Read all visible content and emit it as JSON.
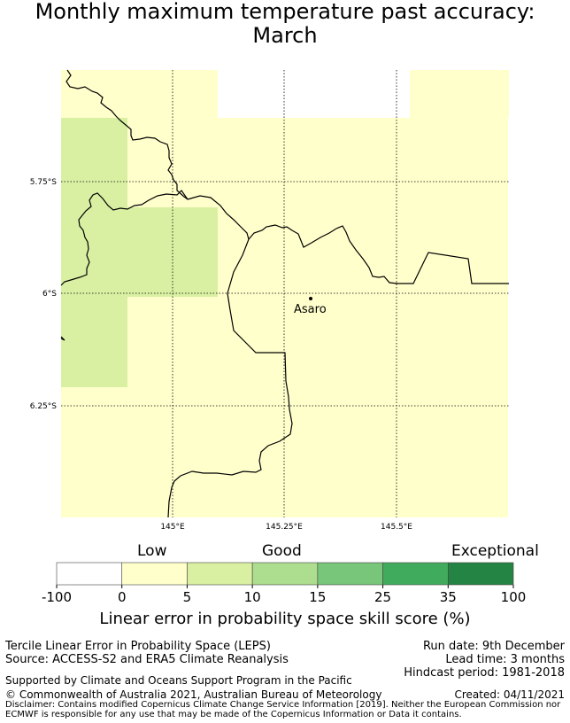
{
  "title": {
    "line1": "Monthly maximum temperature past accuracy:",
    "line2": "March"
  },
  "map": {
    "lat_ticks": [
      "5.75°S",
      "6°S",
      "6.25°S"
    ],
    "lon_ticks": [
      "145°E",
      "145.25°E",
      "145.5°E"
    ],
    "place": "Asaro"
  },
  "colorbar": {
    "categories": [
      "Low",
      "Good",
      "Exceptional"
    ],
    "ticks": [
      "-100",
      "0",
      "5",
      "10",
      "15",
      "25",
      "35",
      "100"
    ],
    "colors": [
      "#ffffff",
      "#ffffcc",
      "#d9f0a3",
      "#addd8e",
      "#78c679",
      "#41ab5d",
      "#238443"
    ],
    "label": "Linear error in probability space skill score (%)"
  },
  "footer": {
    "method": "Tercile Linear Error in Probability Space (LEPS)",
    "source": "Source: ACCESS-S2 and ERA5 Climate Reanalysis",
    "run_date": "Run date: 9th December",
    "lead_time": "Lead time: 3 months",
    "hindcast": "Hindcast period: 1981-2018",
    "support": "Supported by Climate and Oceans Support Program in the Pacific",
    "copyright": "© Commonwealth of Australia 2021, Australian Bureau of Meteorology",
    "created": "Created: 04/11/2021",
    "disclaimer": "Disclaimer: Contains modified Copernicus Climate Change Service Information [2019]. Neither the European Commission nor ECMWF is responsible for any use that may be made of the Copernicus Information or Data it contains."
  }
}
